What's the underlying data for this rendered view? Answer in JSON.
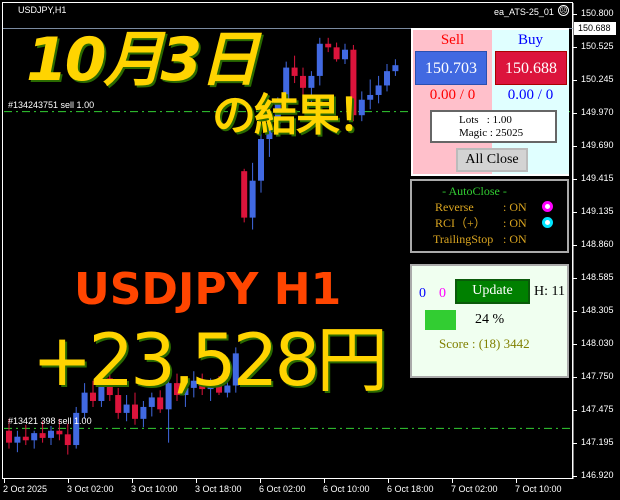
{
  "window": {
    "title": "USDJPY,H1",
    "ea_name": "ea_ATS-25_01",
    "ea_status_icon": "frown-face-icon"
  },
  "price_axis": {
    "labels": [
      "150.800",
      "150.525",
      "150.245",
      "149.970",
      "149.690",
      "149.415",
      "149.135",
      "148.860",
      "148.585",
      "148.305",
      "148.030",
      "147.750",
      "147.475",
      "147.195",
      "146.920"
    ],
    "current_price": "150.688"
  },
  "time_axis": {
    "labels": [
      "2 Oct 2025",
      "3 Oct 02:00",
      "3 Oct 10:00",
      "3 Oct 18:00",
      "6 Oct 02:00",
      "6 Oct 10:00",
      "6 Oct 18:00",
      "7 Oct 02:00",
      "7 Oct 10:00"
    ]
  },
  "orders": [
    {
      "label": "#134243751 sell 1.00",
      "price": 149.98
    },
    {
      "label": "#13421 398 sell 1.00",
      "price": 147.32
    }
  ],
  "colors": {
    "bull": "#4169e1",
    "bear": "#dc143c",
    "order_line": "#32cd32",
    "overlay_yellow": "#ffd400",
    "overlay_orange": "#ff4500"
  },
  "candles": [
    [
      147.3,
      147.4,
      147.15,
      147.2
    ],
    [
      147.2,
      147.3,
      147.12,
      147.25
    ],
    [
      147.25,
      147.35,
      147.18,
      147.22
    ],
    [
      147.22,
      147.3,
      147.15,
      147.28
    ],
    [
      147.28,
      147.38,
      147.2,
      147.24
    ],
    [
      147.24,
      147.34,
      147.18,
      147.3
    ],
    [
      147.3,
      147.4,
      147.22,
      147.27
    ],
    [
      147.27,
      147.36,
      147.1,
      147.18
    ],
    [
      147.18,
      147.5,
      147.15,
      147.45
    ],
    [
      147.45,
      147.7,
      147.4,
      147.62
    ],
    [
      147.62,
      147.72,
      147.5,
      147.55
    ],
    [
      147.55,
      147.8,
      147.5,
      147.74
    ],
    [
      147.74,
      147.82,
      147.55,
      147.6
    ],
    [
      147.6,
      147.66,
      147.4,
      147.45
    ],
    [
      147.45,
      147.6,
      147.38,
      147.52
    ],
    [
      147.52,
      147.62,
      147.35,
      147.4
    ],
    [
      147.4,
      147.55,
      147.33,
      147.5
    ],
    [
      147.5,
      147.62,
      147.42,
      147.58
    ],
    [
      147.58,
      147.64,
      147.45,
      147.48
    ],
    [
      147.48,
      147.75,
      147.2,
      147.7
    ],
    [
      147.7,
      147.78,
      147.55,
      147.6
    ],
    [
      147.6,
      147.7,
      147.5,
      147.66
    ],
    [
      147.66,
      147.8,
      147.58,
      147.72
    ],
    [
      147.72,
      147.78,
      147.6,
      147.65
    ],
    [
      147.65,
      147.74,
      147.55,
      147.7
    ],
    [
      147.7,
      147.76,
      147.6,
      147.62
    ],
    [
      147.62,
      147.72,
      147.58,
      147.68
    ],
    [
      147.68,
      148.0,
      147.62,
      147.95
    ],
    [
      149.48,
      149.5,
      149.05,
      149.09
    ],
    [
      149.09,
      149.55,
      148.99,
      149.4
    ],
    [
      149.4,
      149.85,
      149.3,
      149.75
    ],
    [
      149.75,
      149.95,
      149.6,
      149.88
    ],
    [
      149.88,
      150.1,
      149.8,
      150.05
    ],
    [
      150.05,
      150.4,
      150.0,
      150.35
    ],
    [
      150.35,
      150.45,
      150.22,
      150.28
    ],
    [
      150.28,
      150.35,
      150.1,
      150.18
    ],
    [
      150.18,
      150.32,
      150.05,
      150.28
    ],
    [
      150.28,
      150.6,
      150.2,
      150.55
    ],
    [
      150.55,
      150.6,
      150.48,
      150.52
    ],
    [
      150.52,
      150.56,
      150.4,
      150.42
    ],
    [
      150.42,
      150.55,
      150.38,
      150.5
    ],
    [
      150.5,
      150.54,
      149.9,
      149.95
    ],
    [
      149.95,
      150.15,
      149.9,
      150.08
    ],
    [
      150.08,
      150.25,
      150.0,
      150.12
    ],
    [
      150.12,
      150.28,
      150.05,
      150.2
    ],
    [
      150.2,
      150.38,
      150.15,
      150.32
    ],
    [
      150.32,
      150.42,
      150.28,
      150.37
    ]
  ],
  "overlay": {
    "date": "10月3日",
    "result": "の結果！",
    "pair": "USDJPY H1",
    "profit": "+23,528円"
  },
  "trade_panel": {
    "sell_label": "Sell",
    "buy_label": "Buy",
    "sell_price": "150.703",
    "buy_price": "150.688",
    "sell_pl": "0.00 / 0",
    "buy_pl": "0.00 / 0",
    "lots": "Lots   : 1.00",
    "magic": "Magic : 25025",
    "all_close": "All Close"
  },
  "autoclose_panel": {
    "title": "- AutoClose -",
    "rows": [
      {
        "label": "Reverse",
        "value": ": ON",
        "indicator": "#ff00ff"
      },
      {
        "label": "RCI（+）",
        "value": ": ON",
        "indicator": "#00e5ff"
      },
      {
        "label": "TrailingStop",
        "value": ": ON"
      }
    ]
  },
  "score_panel": {
    "count_blue": "0",
    "count_magenta": "0",
    "update": "Update",
    "hour": "H: 11",
    "percent": "24 %",
    "progress_percent": 24,
    "score": "Score : (18) 3442"
  }
}
